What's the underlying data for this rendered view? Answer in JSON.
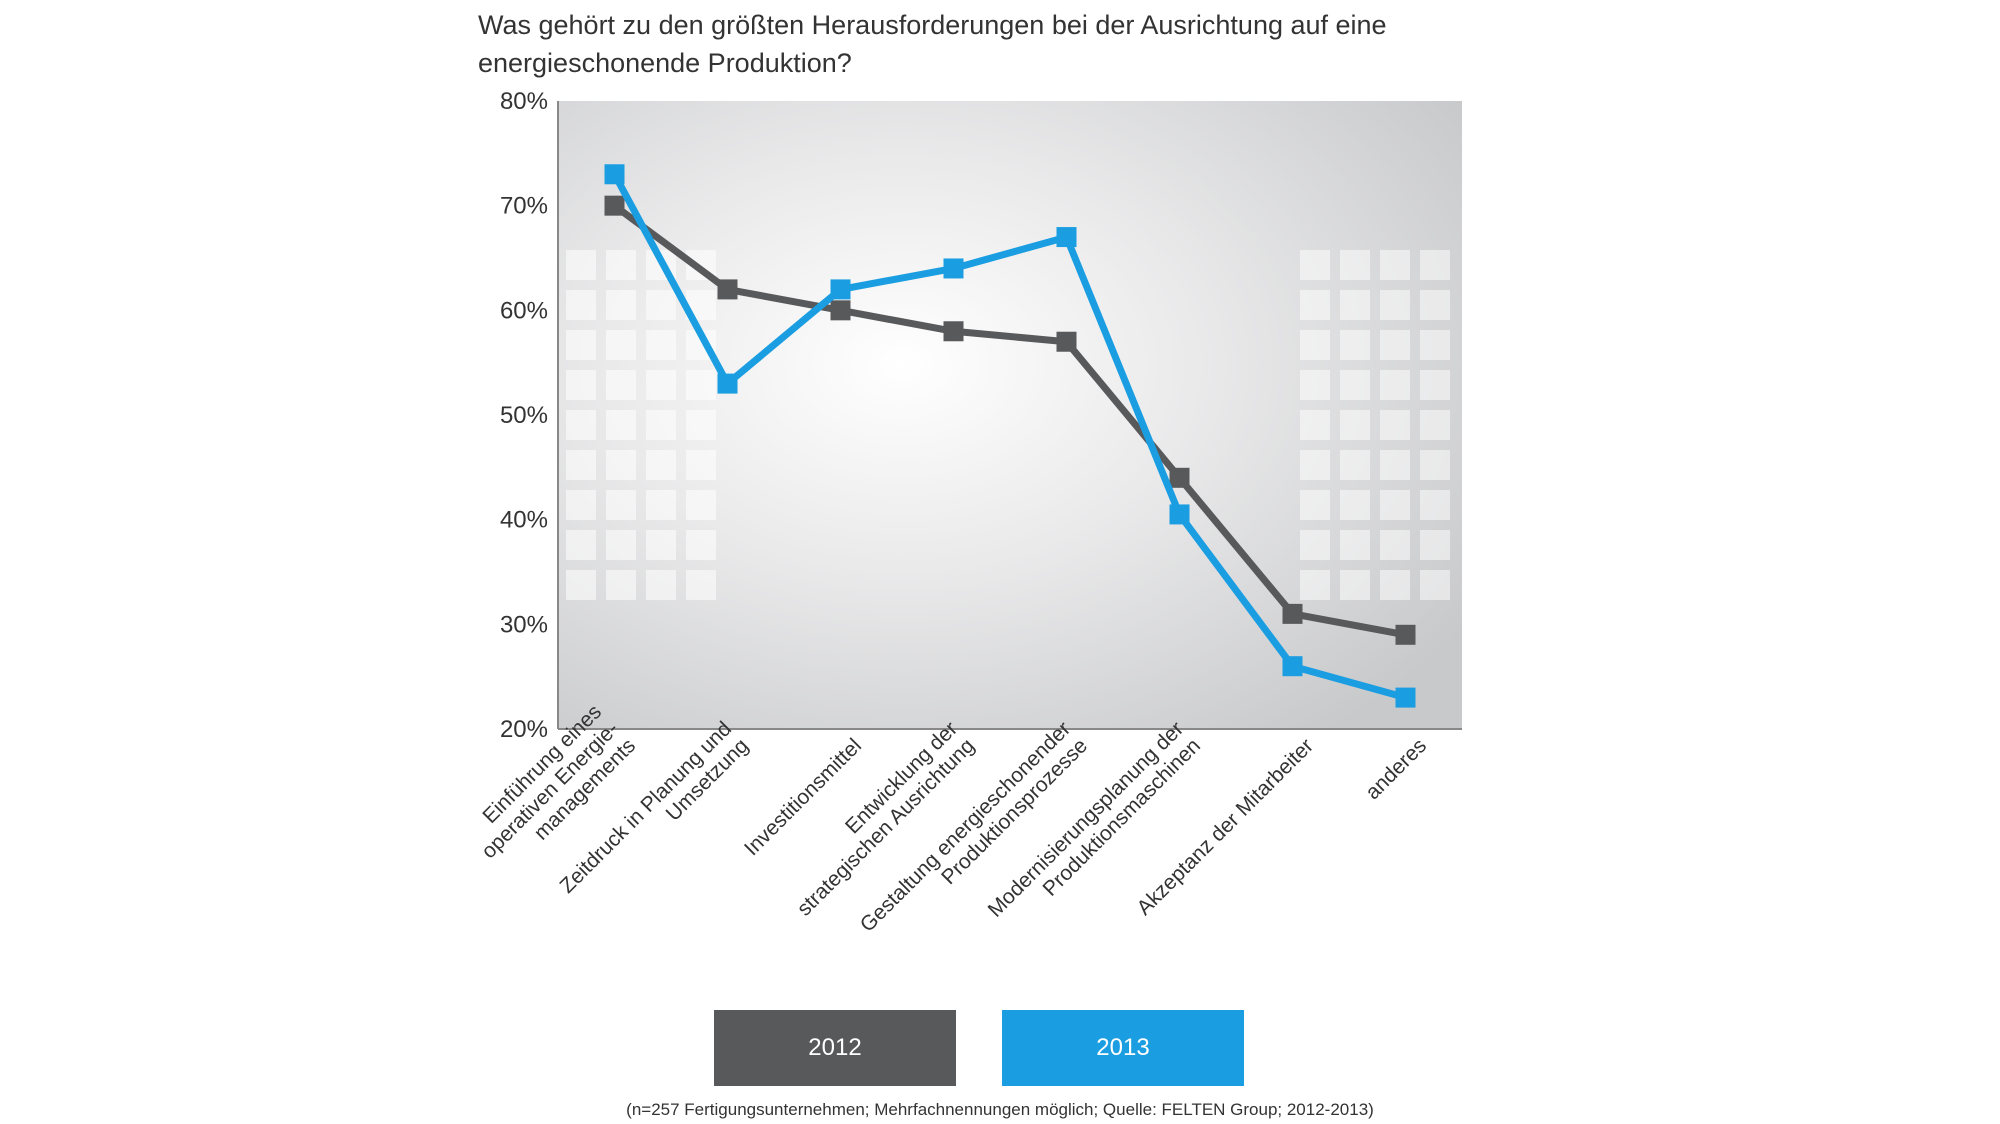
{
  "chart_data": {
    "type": "line",
    "title": "Was gehört zu den größten Herausforderungen bei der Ausrichtung auf eine energieschonende Produktion?",
    "categories": [
      [
        "Einführung eines",
        "operativen Energie-",
        "managements"
      ],
      [
        "Zeitdruck in Planung und",
        "Umsetzung"
      ],
      [
        "Investitionsmittel"
      ],
      [
        "Entwicklung der",
        "strategischen Ausrichtung"
      ],
      [
        "Gestaltung energieschonender",
        "Produktionsprozesse"
      ],
      [
        "Modernisierungsplanung der",
        "Produktionsmaschinen"
      ],
      [
        "Akzeptanz der Mitarbeiter"
      ],
      [
        "anderes"
      ]
    ],
    "series": [
      {
        "name": "2012",
        "color": "#58595b",
        "values": [
          70,
          62,
          60,
          58,
          57,
          44,
          31,
          29
        ]
      },
      {
        "name": "2013",
        "color": "#1a9ee1",
        "values": [
          73,
          53,
          62,
          64,
          67,
          40.5,
          26,
          23
        ]
      }
    ],
    "ylim": [
      20,
      80
    ],
    "yticks": [
      "20%",
      "30%",
      "40%",
      "50%",
      "60%",
      "70%",
      "80%"
    ],
    "ytick_values": [
      20,
      30,
      40,
      50,
      60,
      70,
      80
    ],
    "grid": false,
    "legend_position": "bottom"
  },
  "legend": {
    "label_2012": "2012",
    "label_2013": "2013"
  },
  "source_note": "(n=257 Fertigungsunternehmen; Mehrfachnennungen möglich; Quelle: FELTEN Group; 2012-2013)"
}
